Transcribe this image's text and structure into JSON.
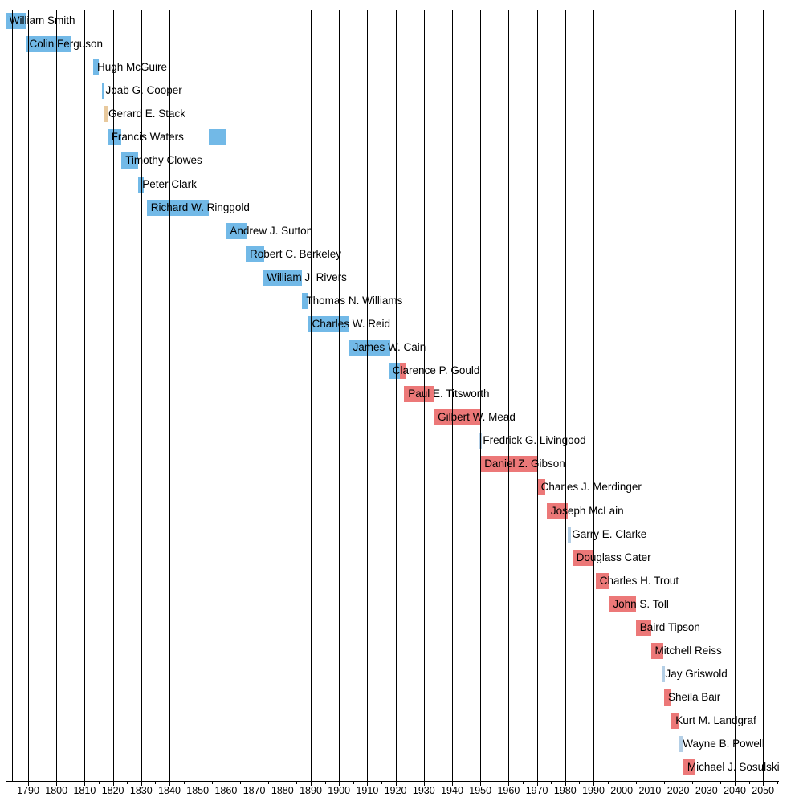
{
  "chart_data": {
    "type": "timeline",
    "title": "",
    "xlabel": "",
    "ylabel": "",
    "grid": "vertical-decade-lines",
    "legend": "none",
    "x_axis": {
      "range_start": 1782,
      "range_end": 2056,
      "tick_interval": 10,
      "minor_tick_interval": 5,
      "tick_labels": [
        "1790",
        "1800",
        "1810",
        "1820",
        "1830",
        "1840",
        "1850",
        "1860",
        "1870",
        "1880",
        "1890",
        "1900",
        "1910",
        "1920",
        "1930",
        "1940",
        "1950",
        "1960",
        "1970",
        "1980",
        "1990",
        "2000",
        "2010",
        "2020",
        "2030",
        "2040",
        "2050"
      ]
    },
    "colors": {
      "blue": "#72b9e7",
      "pink": "#ec7878",
      "pale": "#b4cfe6",
      "tan": "#e8c99d",
      "grid": "#000000",
      "text": "#000000"
    },
    "rows": [
      {
        "name": "William Smith",
        "segments": [
          {
            "start": 1782,
            "end": 1789.5,
            "color": "blue"
          }
        ]
      },
      {
        "name": "Colin Ferguson",
        "segments": [
          {
            "start": 1789,
            "end": 1805,
            "color": "blue"
          }
        ]
      },
      {
        "name": "Hugh McGuire",
        "segments": [
          {
            "start": 1813,
            "end": 1815,
            "color": "blue"
          }
        ]
      },
      {
        "name": "Joab G. Cooper",
        "segments": [
          {
            "start": 1816,
            "end": 1817,
            "color": "blue"
          }
        ]
      },
      {
        "name": "Gerard E. Stack",
        "segments": [
          {
            "start": 1817,
            "end": 1818,
            "color": "tan"
          }
        ]
      },
      {
        "name": "Francis Waters",
        "segments": [
          {
            "start": 1818,
            "end": 1823,
            "color": "blue"
          },
          {
            "start": 1854,
            "end": 1860,
            "color": "blue"
          }
        ]
      },
      {
        "name": "Timothy Clowes",
        "segments": [
          {
            "start": 1823,
            "end": 1829,
            "color": "blue"
          }
        ]
      },
      {
        "name": "Peter Clark",
        "segments": [
          {
            "start": 1829,
            "end": 1831,
            "color": "blue"
          }
        ]
      },
      {
        "name": "Richard W. Ringgold",
        "segments": [
          {
            "start": 1832,
            "end": 1854,
            "color": "blue"
          }
        ]
      },
      {
        "name": "Andrew J. Sutton",
        "segments": [
          {
            "start": 1860,
            "end": 1867.5,
            "color": "blue"
          }
        ]
      },
      {
        "name": "Robert C. Berkeley",
        "segments": [
          {
            "start": 1867,
            "end": 1873.5,
            "color": "blue"
          }
        ]
      },
      {
        "name": "William J. Rivers",
        "segments": [
          {
            "start": 1873,
            "end": 1887,
            "color": "blue"
          }
        ]
      },
      {
        "name": "Thomas N. Williams",
        "segments": [
          {
            "start": 1887,
            "end": 1889,
            "color": "blue"
          }
        ]
      },
      {
        "name": "Charles W. Reid",
        "segments": [
          {
            "start": 1889,
            "end": 1903.5,
            "color": "blue"
          }
        ]
      },
      {
        "name": "James W. Cain",
        "segments": [
          {
            "start": 1903.5,
            "end": 1918,
            "color": "blue"
          }
        ]
      },
      {
        "name": "Clarence P. Gould",
        "segments": [
          {
            "start": 1917.5,
            "end": 1921.5,
            "color": "blue"
          },
          {
            "start": 1921.5,
            "end": 1923.5,
            "color": "pink"
          }
        ]
      },
      {
        "name": "Paul E. Titsworth",
        "segments": [
          {
            "start": 1923,
            "end": 1933.5,
            "color": "pink"
          }
        ]
      },
      {
        "name": "Gilbert W. Mead",
        "segments": [
          {
            "start": 1933.5,
            "end": 1950,
            "color": "pink"
          }
        ]
      },
      {
        "name": "Fredrick G. Livingood",
        "segments": [
          {
            "start": 1949.5,
            "end": 1950.5,
            "color": "pale"
          }
        ]
      },
      {
        "name": "Daniel Z. Gibson",
        "segments": [
          {
            "start": 1950,
            "end": 1970,
            "color": "pink"
          }
        ]
      },
      {
        "name": "Charles J. Merdinger",
        "segments": [
          {
            "start": 1970,
            "end": 1973,
            "color": "pink"
          }
        ]
      },
      {
        "name": "Joseph McLain",
        "segments": [
          {
            "start": 1973.5,
            "end": 1981,
            "color": "pink"
          }
        ]
      },
      {
        "name": "Garry E. Clarke",
        "segments": [
          {
            "start": 1981,
            "end": 1982.2,
            "color": "pale"
          }
        ]
      },
      {
        "name": "Douglass Cater",
        "segments": [
          {
            "start": 1982.5,
            "end": 1990.3,
            "color": "pink"
          }
        ]
      },
      {
        "name": "Charles H. Trout",
        "segments": [
          {
            "start": 1990.8,
            "end": 1995.8,
            "color": "pink"
          }
        ]
      },
      {
        "name": "John S. Toll",
        "segments": [
          {
            "start": 1995.5,
            "end": 2005,
            "color": "pink"
          }
        ]
      },
      {
        "name": "Baird Tipson",
        "segments": [
          {
            "start": 2005,
            "end": 2010.5,
            "color": "pink"
          }
        ]
      },
      {
        "name": "Mitchell Reiss",
        "segments": [
          {
            "start": 2010.3,
            "end": 2014.7,
            "color": "pink"
          }
        ]
      },
      {
        "name": "Jay Griswold",
        "segments": [
          {
            "start": 2014,
            "end": 2015.2,
            "color": "pale"
          }
        ]
      },
      {
        "name": "Sheila Bair",
        "segments": [
          {
            "start": 2015,
            "end": 2017.6,
            "color": "pink"
          }
        ]
      },
      {
        "name": "Kurt M. Landgraf",
        "segments": [
          {
            "start": 2017.6,
            "end": 2020.2,
            "color": "pink"
          }
        ]
      },
      {
        "name": "Wayne B. Powell",
        "segments": [
          {
            "start": 2020.2,
            "end": 2021.8,
            "color": "pale"
          }
        ]
      },
      {
        "name": "Michael J. Sosulski",
        "segments": [
          {
            "start": 2021.8,
            "end": 2026,
            "color": "pink"
          }
        ]
      }
    ]
  }
}
